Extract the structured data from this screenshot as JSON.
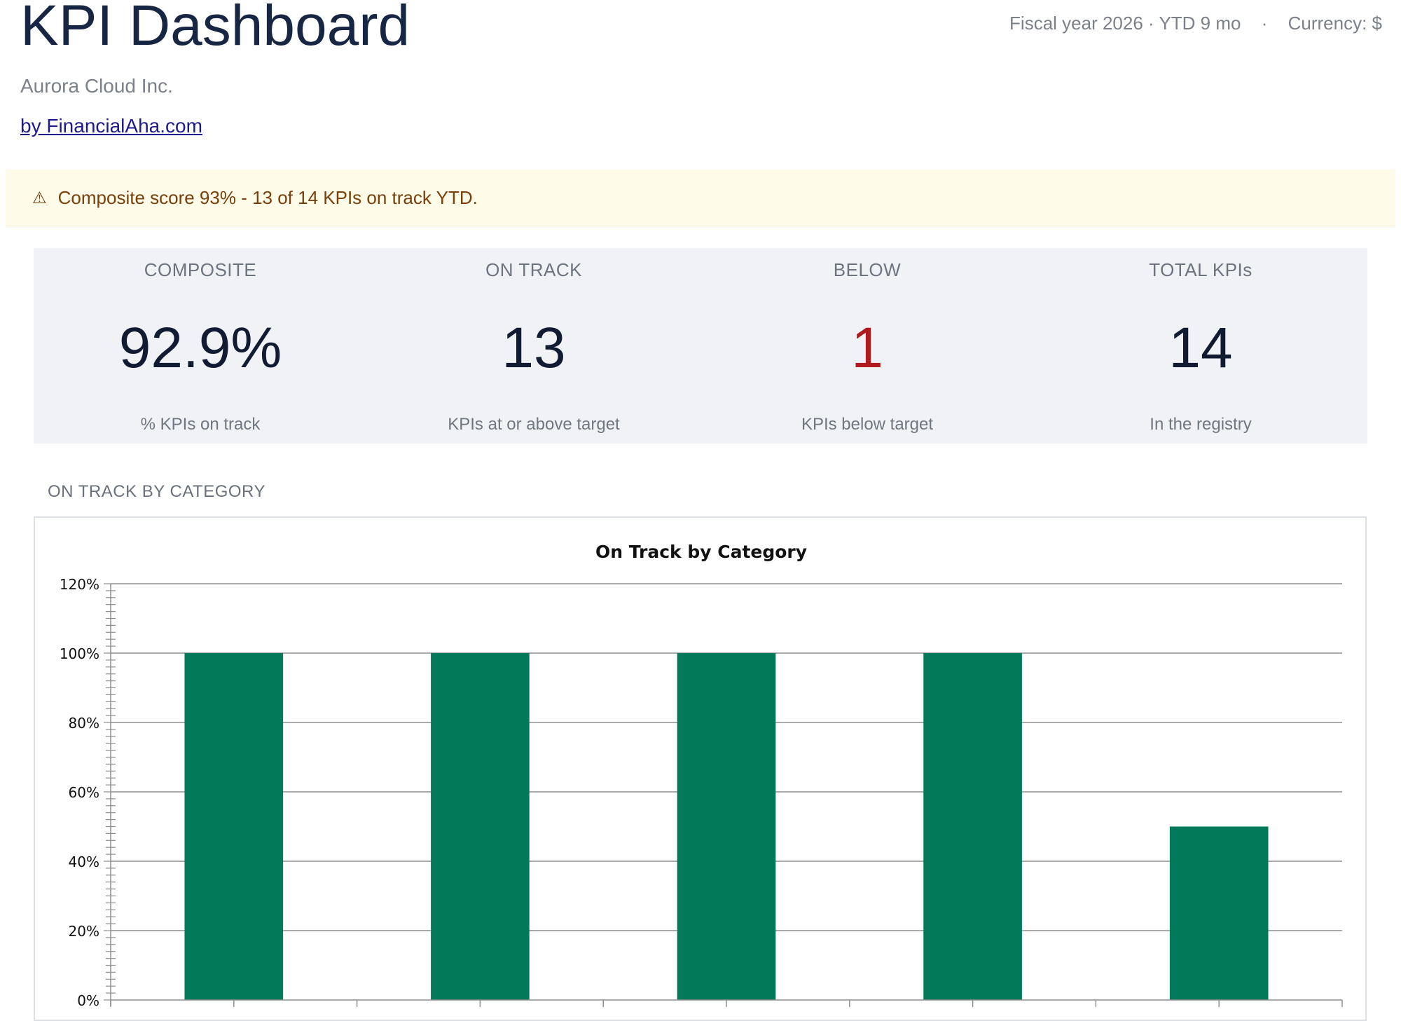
{
  "header": {
    "title": "KPI Dashboard",
    "fiscal": "Fiscal year 2026 · YTD 9 mo",
    "separator": "·",
    "currency": "Currency: $",
    "company": "Aurora Cloud Inc.",
    "byline": "by FinancialAha.com"
  },
  "alert": {
    "icon": "warning-icon",
    "glyph": "⚠",
    "text": "Composite score 93% - 13 of 14 KPIs on track YTD."
  },
  "kpis": [
    {
      "label": "COMPOSITE",
      "value": "92.9%",
      "sub": "% KPIs on track",
      "color": "#111c33"
    },
    {
      "label": "ON TRACK",
      "value": "13",
      "sub": "KPIs at or above target",
      "color": "#111c33"
    },
    {
      "label": "BELOW",
      "value": "1",
      "sub": "KPIs below target",
      "color": "#b01a1f"
    },
    {
      "label": "TOTAL KPIs",
      "value": "14",
      "sub": "In the registry",
      "color": "#111c33"
    }
  ],
  "section": {
    "label": "ON TRACK BY CATEGORY"
  },
  "chart_data": {
    "type": "bar",
    "title": "On Track by Category",
    "xlabel": "",
    "ylabel": "",
    "ylim": [
      0,
      1.2
    ],
    "yticks": [
      "0%",
      "20%",
      "40%",
      "60%",
      "80%",
      "100%",
      "120%"
    ],
    "values": [
      1.0,
      1.0,
      1.0,
      1.0,
      0.5
    ],
    "grid": true,
    "bar_color": "#027a59"
  }
}
